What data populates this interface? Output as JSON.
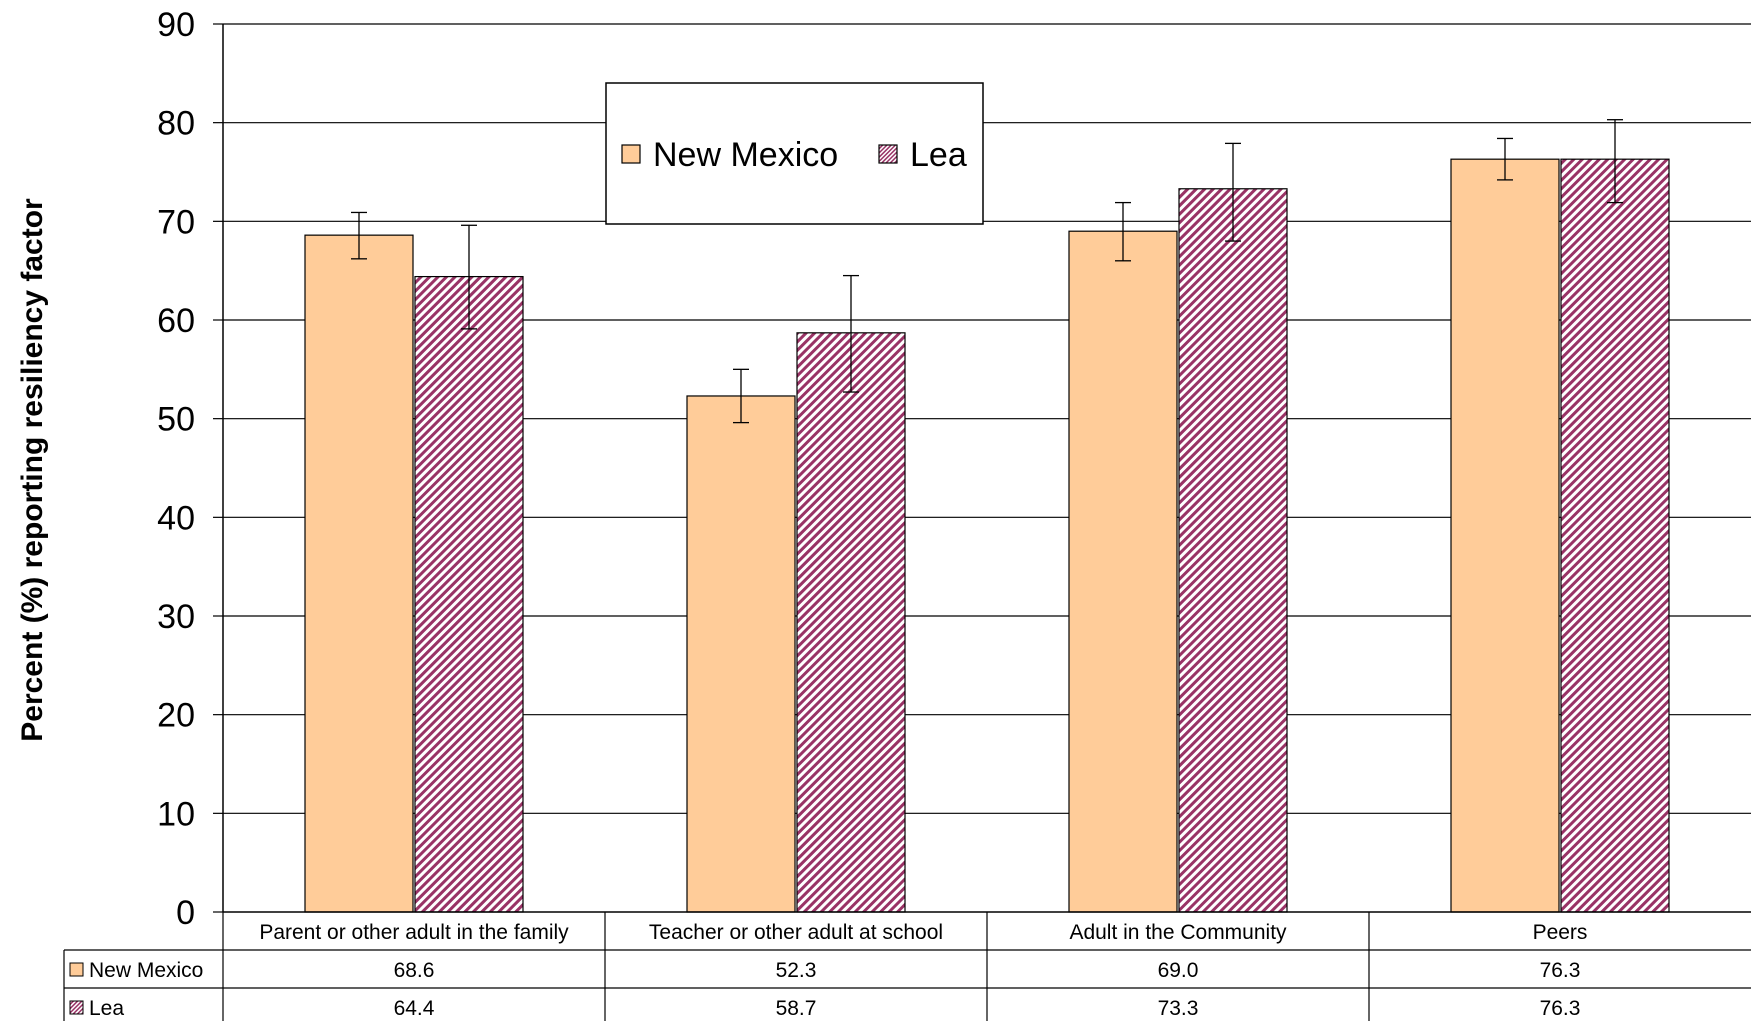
{
  "chart_data": {
    "type": "bar",
    "title": "",
    "xlabel": "",
    "ylabel": "Percent (%)  reporting resiliency factor",
    "ylim": [
      0,
      90
    ],
    "yticks": [
      0,
      10,
      20,
      30,
      40,
      50,
      60,
      70,
      80,
      90
    ],
    "grid": true,
    "legend_position": "top-center",
    "categories": [
      "Parent or other adult in the family",
      "Teacher or other adult at school",
      "Adult in the Community",
      "Peers"
    ],
    "series": [
      {
        "name": "New Mexico",
        "color": "#FFCC99",
        "pattern": "solid",
        "values": [
          68.6,
          52.3,
          69.0,
          76.3
        ],
        "value_labels": [
          "68.6",
          "52.3",
          "69.0",
          "76.3"
        ],
        "error_low": [
          66.2,
          49.6,
          66.0,
          74.2
        ],
        "error_high": [
          70.9,
          55.0,
          71.9,
          78.4
        ]
      },
      {
        "name": "Lea",
        "color": "#993366",
        "pattern": "diagonal-hatch",
        "values": [
          64.4,
          58.7,
          73.3,
          76.3
        ],
        "value_labels": [
          "64.4",
          "58.7",
          "73.3",
          "76.3"
        ],
        "error_low": [
          59.1,
          52.7,
          68.0,
          71.9
        ],
        "error_high": [
          69.6,
          64.5,
          77.9,
          80.3
        ]
      }
    ],
    "data_table": true
  }
}
